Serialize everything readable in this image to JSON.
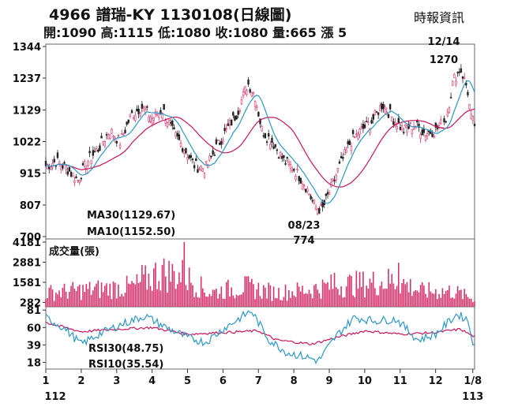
{
  "header": {
    "title": "4966  譜瑞-KY 1130108(日線圖)",
    "quote": "開:1090 高:1115 低:1080 收:1080 量:665 漲 5",
    "source": "時報資訊"
  },
  "colors": {
    "up": "#d6336c",
    "down": "#222222",
    "ma30": "#c8145a",
    "ma10": "#2c97c4",
    "rsi30": "#c8145a",
    "rsi10": "#2c97c4",
    "volume": "#d6336c"
  },
  "chart_data": [
    {
      "type": "candlestick",
      "ylim": [
        700,
        1344
      ],
      "yticks": [
        1344,
        1237,
        1129,
        1022,
        915,
        807,
        700
      ],
      "annotations": [
        {
          "date": "12/14",
          "value": "1270",
          "text_date": "12/14",
          "text_value": "1270"
        },
        {
          "date": "08/23",
          "value": "774",
          "text_date": "08/23",
          "text_value": "774"
        }
      ],
      "price_path": [
        {
          "m": 1.0,
          "p": 940
        },
        {
          "m": 1.3,
          "p": 955
        },
        {
          "m": 1.6,
          "p": 930
        },
        {
          "m": 1.9,
          "p": 890
        },
        {
          "m": 2.2,
          "p": 960
        },
        {
          "m": 2.5,
          "p": 1000
        },
        {
          "m": 2.8,
          "p": 1060
        },
        {
          "m": 3.1,
          "p": 1020
        },
        {
          "m": 3.4,
          "p": 1110
        },
        {
          "m": 3.7,
          "p": 1140
        },
        {
          "m": 4.0,
          "p": 1100
        },
        {
          "m": 4.3,
          "p": 1130
        },
        {
          "m": 4.6,
          "p": 1050
        },
        {
          "m": 4.9,
          "p": 1000
        },
        {
          "m": 5.2,
          "p": 940
        },
        {
          "m": 5.5,
          "p": 930
        },
        {
          "m": 5.8,
          "p": 1000
        },
        {
          "m": 6.1,
          "p": 1060
        },
        {
          "m": 6.4,
          "p": 1120
        },
        {
          "m": 6.7,
          "p": 1220
        },
        {
          "m": 6.9,
          "p": 1180
        },
        {
          "m": 7.1,
          "p": 1060
        },
        {
          "m": 7.4,
          "p": 1020
        },
        {
          "m": 7.7,
          "p": 960
        },
        {
          "m": 8.0,
          "p": 930
        },
        {
          "m": 8.3,
          "p": 880
        },
        {
          "m": 8.6,
          "p": 800
        },
        {
          "m": 8.8,
          "p": 790
        },
        {
          "m": 9.0,
          "p": 850
        },
        {
          "m": 9.3,
          "p": 940
        },
        {
          "m": 9.6,
          "p": 1020
        },
        {
          "m": 9.9,
          "p": 1060
        },
        {
          "m": 10.2,
          "p": 1090
        },
        {
          "m": 10.5,
          "p": 1150
        },
        {
          "m": 10.8,
          "p": 1100
        },
        {
          "m": 11.1,
          "p": 1060
        },
        {
          "m": 11.4,
          "p": 1080
        },
        {
          "m": 11.7,
          "p": 1050
        },
        {
          "m": 12.0,
          "p": 1060
        },
        {
          "m": 12.3,
          "p": 1100
        },
        {
          "m": 12.5,
          "p": 1230
        },
        {
          "m": 12.7,
          "p": 1270
        },
        {
          "m": 12.9,
          "p": 1200
        },
        {
          "m": 13.0,
          "p": 1100
        },
        {
          "m": 13.1,
          "p": 1080
        }
      ],
      "ma30": {
        "label": "MA30(1129.67)",
        "smooth": 12
      },
      "ma10": {
        "label": "MA10(1152.50)",
        "smooth": 4
      }
    },
    {
      "type": "bar",
      "title": "成交量(張)",
      "ylim": [
        0,
        4181
      ],
      "yticks": [
        4181,
        2881,
        1581,
        282
      ],
      "volume_levels": [
        {
          "m": 1.0,
          "v": 900
        },
        {
          "m": 3.5,
          "v": 1300
        },
        {
          "m": 4.2,
          "v": 2200
        },
        {
          "m": 4.9,
          "v": 2000
        },
        {
          "m": 5.6,
          "v": 900
        },
        {
          "m": 6.6,
          "v": 1300
        },
        {
          "m": 7.5,
          "v": 900
        },
        {
          "m": 8.4,
          "v": 1100
        },
        {
          "m": 9.2,
          "v": 1400
        },
        {
          "m": 10.0,
          "v": 1500
        },
        {
          "m": 10.9,
          "v": 1700
        },
        {
          "m": 11.6,
          "v": 1000
        },
        {
          "m": 12.5,
          "v": 1000
        },
        {
          "m": 13.1,
          "v": 500
        }
      ],
      "spikes": [
        {
          "m": 4.9,
          "v": 4181
        },
        {
          "m": 4.3,
          "v": 2700
        },
        {
          "m": 10.95,
          "v": 2850
        },
        {
          "m": 9.15,
          "v": 2200
        },
        {
          "m": 3.7,
          "v": 2700
        }
      ]
    },
    {
      "type": "line",
      "ylim": [
        10,
        85
      ],
      "yticks": [
        81,
        60,
        39,
        18
      ],
      "series": [
        {
          "name": "RSI30(48.75)",
          "values_by_month": [
            {
              "m": 1.0,
              "v": 66
            },
            {
              "m": 2.0,
              "v": 55
            },
            {
              "m": 3.0,
              "v": 58
            },
            {
              "m": 4.0,
              "v": 60
            },
            {
              "m": 5.0,
              "v": 52
            },
            {
              "m": 6.0,
              "v": 54
            },
            {
              "m": 7.0,
              "v": 56
            },
            {
              "m": 7.5,
              "v": 45
            },
            {
              "m": 8.5,
              "v": 40
            },
            {
              "m": 9.2,
              "v": 48
            },
            {
              "m": 10.0,
              "v": 56
            },
            {
              "m": 11.0,
              "v": 52
            },
            {
              "m": 12.0,
              "v": 54
            },
            {
              "m": 12.7,
              "v": 58
            },
            {
              "m": 13.1,
              "v": 48.75
            }
          ]
        },
        {
          "name": "RSI10(35.54)",
          "values_by_month": [
            {
              "m": 1.0,
              "v": 72
            },
            {
              "m": 1.5,
              "v": 60
            },
            {
              "m": 2.0,
              "v": 40
            },
            {
              "m": 2.5,
              "v": 52
            },
            {
              "m": 3.2,
              "v": 65
            },
            {
              "m": 3.8,
              "v": 74
            },
            {
              "m": 4.4,
              "v": 60
            },
            {
              "m": 5.0,
              "v": 48
            },
            {
              "m": 5.5,
              "v": 42
            },
            {
              "m": 6.0,
              "v": 58
            },
            {
              "m": 6.5,
              "v": 72
            },
            {
              "m": 6.8,
              "v": 80
            },
            {
              "m": 7.3,
              "v": 45
            },
            {
              "m": 7.8,
              "v": 30
            },
            {
              "m": 8.3,
              "v": 25
            },
            {
              "m": 8.7,
              "v": 20
            },
            {
              "m": 9.2,
              "v": 50
            },
            {
              "m": 9.7,
              "v": 72
            },
            {
              "m": 10.3,
              "v": 68
            },
            {
              "m": 10.9,
              "v": 70
            },
            {
              "m": 11.5,
              "v": 45
            },
            {
              "m": 12.0,
              "v": 52
            },
            {
              "m": 12.6,
              "v": 76
            },
            {
              "m": 12.9,
              "v": 70
            },
            {
              "m": 13.1,
              "v": 35.54
            }
          ]
        }
      ]
    }
  ],
  "x_axis": {
    "months": [
      {
        "m": 1,
        "label": "1"
      },
      {
        "m": 2,
        "label": "2"
      },
      {
        "m": 3,
        "label": "3"
      },
      {
        "m": 4,
        "label": "4"
      },
      {
        "m": 5,
        "label": "5"
      },
      {
        "m": 6,
        "label": "6"
      },
      {
        "m": 7,
        "label": "7"
      },
      {
        "m": 8,
        "label": "8"
      },
      {
        "m": 9,
        "label": "9"
      },
      {
        "m": 10,
        "label": "10"
      },
      {
        "m": 11,
        "label": "11"
      },
      {
        "m": 12,
        "label": "12"
      },
      {
        "m": 13.05,
        "label": "1/8"
      }
    ],
    "year_start": "112",
    "year_end": "113"
  }
}
